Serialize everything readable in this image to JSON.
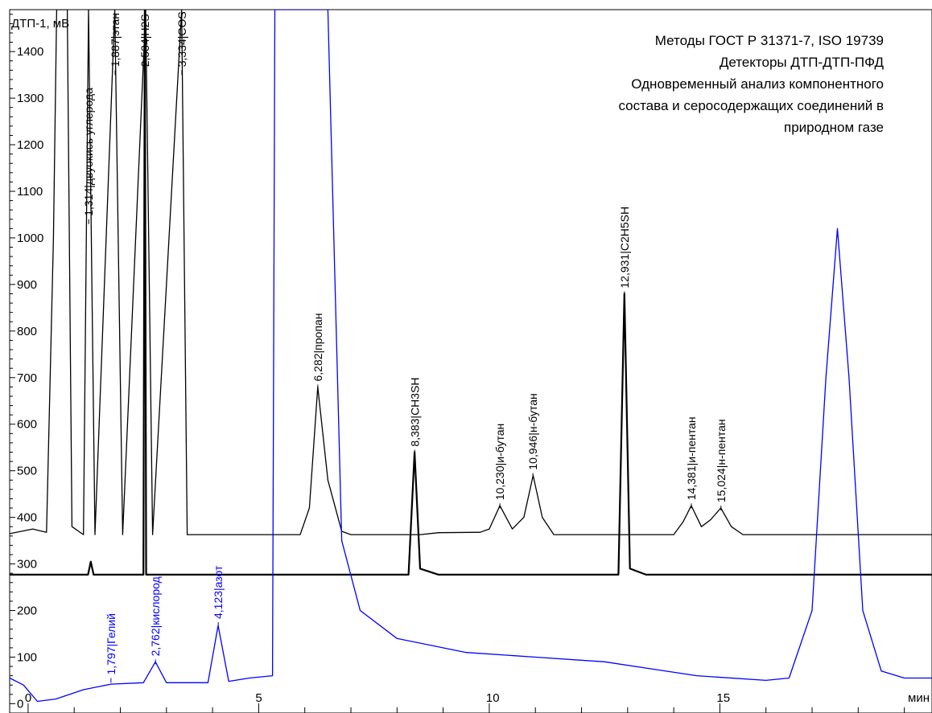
{
  "chart_data": {
    "type": "line",
    "info_lines": [
      "Методы ГОСТ Р 31371-7, ISO 19739",
      "Детекторы ДТП-ДТП-ПФД",
      "Одновременный анализ компонентного",
      "состава и серосодержащих соединений в",
      "природном газе"
    ],
    "ylabel": "ДТП-1, мВ",
    "xlabel": "мин",
    "xlim": [
      -0.4,
      19.6
    ],
    "ylim": [
      -20,
      1490
    ],
    "x_ticks": [
      0,
      5,
      10,
      15
    ],
    "y_ticks": [
      0,
      100,
      200,
      300,
      400,
      500,
      600,
      700,
      800,
      900,
      1000,
      1100,
      1200,
      1300,
      1400
    ],
    "grid": false,
    "colors": {
      "trace_1": "#000000",
      "trace_2": "#000000",
      "trace_3": "#0000ff",
      "blue_labels": "#0000ff"
    },
    "series": [
      {
        "color": "#000000",
        "baseline": 363,
        "values": [
          {
            "x": -0.4,
            "y": 365
          },
          {
            "x": 0.1,
            "y": 375
          },
          {
            "x": 0.4,
            "y": 368
          },
          {
            "x": 0.55,
            "y": 1000
          },
          {
            "x": 0.62,
            "y": 1500
          },
          {
            "x": 0.7,
            "y": 1500
          },
          {
            "x": 0.78,
            "y": 1500
          },
          {
            "x": 0.85,
            "y": 1500
          },
          {
            "x": 0.95,
            "y": 380
          },
          {
            "x": 1.2,
            "y": 363
          },
          {
            "x": 1.31,
            "y": 1500
          },
          {
            "x": 1.45,
            "y": 363
          },
          {
            "x": 1.88,
            "y": 1500
          },
          {
            "x": 2.05,
            "y": 363
          },
          {
            "x": 2.55,
            "y": 1500
          },
          {
            "x": 2.7,
            "y": 363
          },
          {
            "x": 3.33,
            "y": 1500
          },
          {
            "x": 3.45,
            "y": 363
          },
          {
            "x": 5.9,
            "y": 363
          },
          {
            "x": 6.1,
            "y": 420
          },
          {
            "x": 6.28,
            "y": 680
          },
          {
            "x": 6.5,
            "y": 480
          },
          {
            "x": 6.8,
            "y": 370
          },
          {
            "x": 7.0,
            "y": 363
          },
          {
            "x": 8.5,
            "y": 363
          },
          {
            "x": 8.9,
            "y": 367
          },
          {
            "x": 9.8,
            "y": 368
          },
          {
            "x": 10.0,
            "y": 375
          },
          {
            "x": 10.23,
            "y": 425
          },
          {
            "x": 10.5,
            "y": 375
          },
          {
            "x": 10.75,
            "y": 400
          },
          {
            "x": 10.95,
            "y": 490
          },
          {
            "x": 11.15,
            "y": 400
          },
          {
            "x": 11.4,
            "y": 363
          },
          {
            "x": 14.0,
            "y": 363
          },
          {
            "x": 14.2,
            "y": 390
          },
          {
            "x": 14.38,
            "y": 425
          },
          {
            "x": 14.6,
            "y": 380
          },
          {
            "x": 14.8,
            "y": 395
          },
          {
            "x": 15.02,
            "y": 420
          },
          {
            "x": 15.25,
            "y": 380
          },
          {
            "x": 15.5,
            "y": 363
          },
          {
            "x": 19.6,
            "y": 363
          }
        ]
      },
      {
        "color": "#000000",
        "baseline": 277,
        "values": [
          {
            "x": -0.4,
            "y": 277
          },
          {
            "x": 1.3,
            "y": 277
          },
          {
            "x": 1.36,
            "y": 305
          },
          {
            "x": 1.42,
            "y": 277
          },
          {
            "x": 2.5,
            "y": 277
          },
          {
            "x": 2.53,
            "y": 1500
          },
          {
            "x": 2.56,
            "y": 277
          },
          {
            "x": 8.25,
            "y": 277
          },
          {
            "x": 8.38,
            "y": 540
          },
          {
            "x": 8.5,
            "y": 290
          },
          {
            "x": 8.9,
            "y": 277
          },
          {
            "x": 12.8,
            "y": 277
          },
          {
            "x": 12.93,
            "y": 880
          },
          {
            "x": 13.05,
            "y": 290
          },
          {
            "x": 13.4,
            "y": 277
          },
          {
            "x": 19.6,
            "y": 277
          }
        ]
      },
      {
        "color": "#0000ff",
        "baseline": 45,
        "values": [
          {
            "x": -0.4,
            "y": 55
          },
          {
            "x": -0.1,
            "y": 40
          },
          {
            "x": 0.2,
            "y": 5
          },
          {
            "x": 0.6,
            "y": 10
          },
          {
            "x": 1.2,
            "y": 30
          },
          {
            "x": 1.8,
            "y": 42
          },
          {
            "x": 2.5,
            "y": 45
          },
          {
            "x": 2.76,
            "y": 90
          },
          {
            "x": 3.0,
            "y": 45
          },
          {
            "x": 3.9,
            "y": 45
          },
          {
            "x": 4.12,
            "y": 168
          },
          {
            "x": 4.35,
            "y": 48
          },
          {
            "x": 4.8,
            "y": 55
          },
          {
            "x": 5.3,
            "y": 60
          },
          {
            "x": 5.35,
            "y": 1500
          },
          {
            "x": 5.45,
            "y": 1500
          },
          {
            "x": 6.5,
            "y": 1500
          },
          {
            "x": 6.8,
            "y": 350
          },
          {
            "x": 7.2,
            "y": 200
          },
          {
            "x": 8.0,
            "y": 140
          },
          {
            "x": 9.5,
            "y": 110
          },
          {
            "x": 11.0,
            "y": 100
          },
          {
            "x": 12.5,
            "y": 90
          },
          {
            "x": 13.5,
            "y": 75
          },
          {
            "x": 14.5,
            "y": 60
          },
          {
            "x": 16.0,
            "y": 50
          },
          {
            "x": 16.5,
            "y": 55
          },
          {
            "x": 17.0,
            "y": 200
          },
          {
            "x": 17.3,
            "y": 700
          },
          {
            "x": 17.55,
            "y": 1020
          },
          {
            "x": 17.8,
            "y": 700
          },
          {
            "x": 18.1,
            "y": 200
          },
          {
            "x": 18.5,
            "y": 70
          },
          {
            "x": 19.0,
            "y": 55
          },
          {
            "x": 19.6,
            "y": 55
          }
        ]
      }
    ],
    "peak_labels": [
      {
        "x": 1.314,
        "y": 1040,
        "text": "1,314|двуокись углерода",
        "color": "#000000"
      },
      {
        "x": 1.887,
        "y": 1360,
        "text": "1,887|этан",
        "color": "#000000"
      },
      {
        "x": 2.534,
        "y": 1360,
        "text": "2,534|H2S",
        "color": "#000000"
      },
      {
        "x": 3.334,
        "y": 1360,
        "text": "3,334|COS",
        "color": "#000000"
      },
      {
        "x": 6.282,
        "y": 685,
        "text": "6,282|пропан",
        "color": "#000000"
      },
      {
        "x": 8.383,
        "y": 545,
        "text": "8,383|CH3SH",
        "color": "#000000"
      },
      {
        "x": 10.23,
        "y": 430,
        "text": "10,230|и-бутан",
        "color": "#000000"
      },
      {
        "x": 10.946,
        "y": 495,
        "text": "10,946|н-бутан",
        "color": "#000000"
      },
      {
        "x": 12.931,
        "y": 885,
        "text": "12,931|C2H5SH",
        "color": "#000000"
      },
      {
        "x": 14.381,
        "y": 430,
        "text": "14,381|и-пентан",
        "color": "#000000"
      },
      {
        "x": 15.024,
        "y": 425,
        "text": "15,024|н-пентан",
        "color": "#000000"
      },
      {
        "x": 1.797,
        "y": 55,
        "text": "1,797|Гелий",
        "color": "#0000ff"
      },
      {
        "x": 2.762,
        "y": 95,
        "text": "2,762|кислород",
        "color": "#0000ff"
      },
      {
        "x": 4.123,
        "y": 175,
        "text": "4,123|азот",
        "color": "#0000ff"
      }
    ]
  }
}
